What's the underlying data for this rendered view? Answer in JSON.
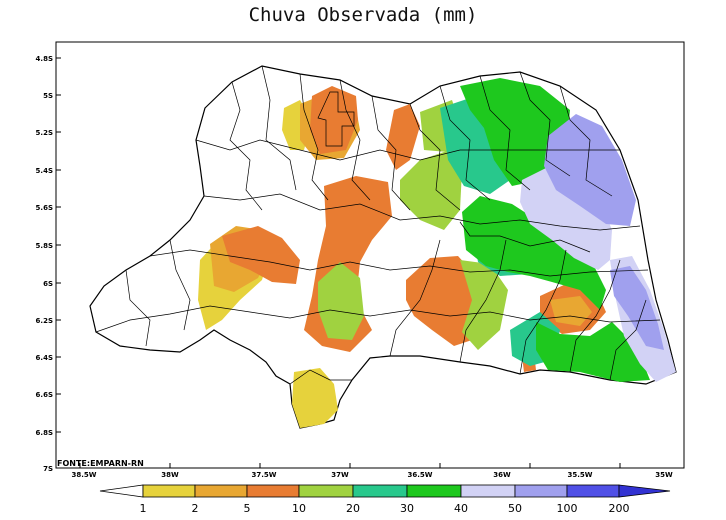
{
  "map": {
    "title": "Chuva Observada (mm)",
    "source": "FONTE:EMPARN-RN",
    "lat_ticks": [
      "4.8S",
      "5S",
      "5.2S",
      "5.4S",
      "5.6S",
      "5.8S",
      "6S",
      "6.2S",
      "6.4S",
      "6.6S",
      "6.8S",
      "7S"
    ],
    "lon_ticks": [
      "38.5W",
      "38W",
      "37.5W",
      "37W",
      "36.5W",
      "36W",
      "35.5W",
      "35W"
    ],
    "lat_range": [
      -7.0,
      -4.7
    ],
    "lon_range": [
      -38.5,
      -35.0
    ]
  },
  "colorbar": {
    "labels": [
      "1",
      "2",
      "5",
      "10",
      "20",
      "30",
      "40",
      "50",
      "100",
      "200"
    ],
    "colors": [
      "#ffffff",
      "#e6d23c",
      "#e8a732",
      "#e87c32",
      "#a0d240",
      "#28c88c",
      "#1ec81e",
      "#d2d2f5",
      "#a0a0ee",
      "#5050e6",
      "#3232d2"
    ]
  }
}
